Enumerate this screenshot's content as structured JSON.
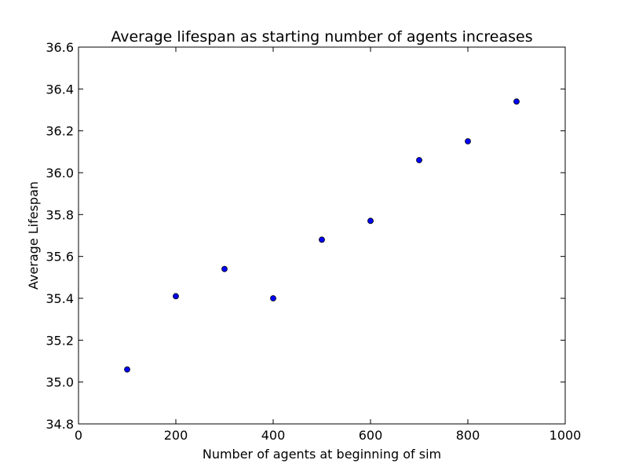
{
  "chart_data": {
    "type": "scatter",
    "title": "Average lifespan as starting number of agents increases",
    "xlabel": "Number of agents at beginning of sim",
    "ylabel": "Average Lifespan",
    "xlim": [
      0,
      1000
    ],
    "ylim": [
      34.8,
      36.6
    ],
    "x_ticks": [
      0,
      200,
      400,
      600,
      800,
      1000
    ],
    "x_tick_labels": [
      "0",
      "200",
      "400",
      "600",
      "800",
      "1000"
    ],
    "y_ticks": [
      34.8,
      35.0,
      35.2,
      35.4,
      35.6,
      35.8,
      36.0,
      36.2,
      36.4,
      36.6
    ],
    "y_tick_labels": [
      "34.8",
      "35.0",
      "35.2",
      "35.4",
      "35.6",
      "35.8",
      "36.0",
      "36.2",
      "36.4",
      "36.6"
    ],
    "grid": false,
    "legend": "none",
    "series": [
      {
        "color": "#0000ff",
        "points": [
          {
            "x": 100,
            "y": 35.06
          },
          {
            "x": 200,
            "y": 35.41
          },
          {
            "x": 300,
            "y": 35.54
          },
          {
            "x": 400,
            "y": 35.4
          },
          {
            "x": 500,
            "y": 35.68
          },
          {
            "x": 600,
            "y": 35.77
          },
          {
            "x": 700,
            "y": 36.06
          },
          {
            "x": 800,
            "y": 36.15
          },
          {
            "x": 900,
            "y": 36.34
          }
        ]
      }
    ]
  }
}
